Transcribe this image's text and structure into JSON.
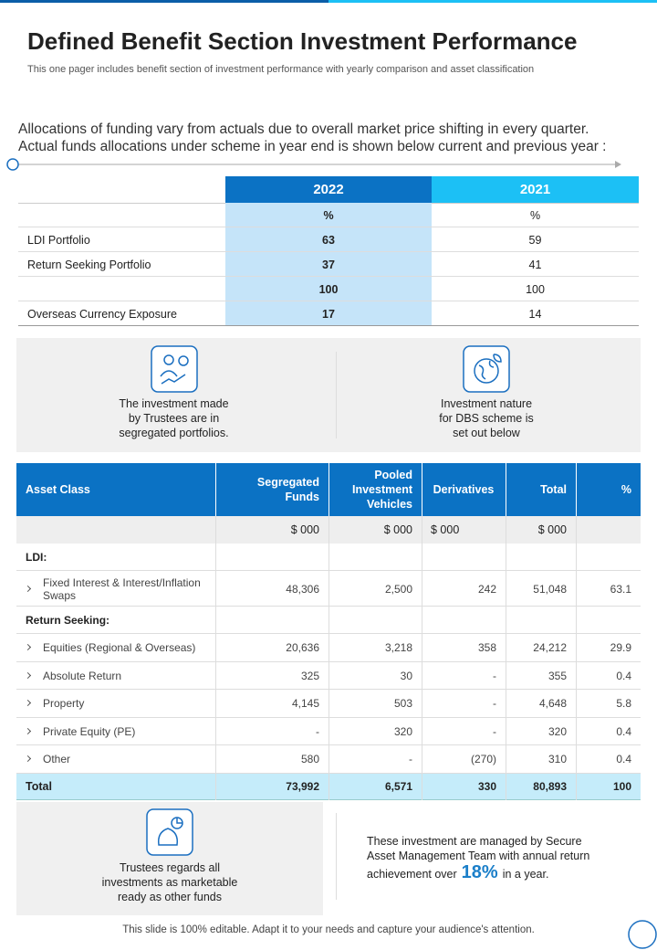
{
  "header": {
    "title": "Defined Benefit Section Investment Performance",
    "subtitle": "This one pager includes benefit section of investment performance with yearly comparison and asset classification"
  },
  "intro": [
    "Allocations of funding vary from actuals due to overall market price shifting in every quarter.",
    "Actual funds allocations under scheme in year end is shown below current and previous year :"
  ],
  "allocation_table": {
    "columns": [
      "2022",
      "2021"
    ],
    "rows": [
      {
        "values": [
          "%",
          "%"
        ]
      },
      {
        "label": "LDI Portfolio",
        "values": [
          "63",
          "59"
        ]
      },
      {
        "label": "Return Seeking Portfolio",
        "values": [
          "37",
          "41"
        ]
      },
      {
        "values": [
          "100",
          "100"
        ]
      },
      {
        "label": "Overseas  Currency Exposure",
        "values": [
          "17",
          "14"
        ]
      }
    ]
  },
  "info_panel": {
    "left": [
      "The investment made",
      "by Trustees are in",
      "segregated portfolios."
    ],
    "right": [
      "Investment nature",
      "for DBS scheme is",
      "set out below"
    ]
  },
  "asset_table": {
    "headers": [
      "Asset  Class",
      "Segregated Funds",
      "Pooled Investment Vehicles",
      "Derivatives",
      "Total",
      "%"
    ],
    "units": [
      "$ 000",
      "$ 000",
      "$ 000",
      "$ 000"
    ],
    "sections": [
      {
        "title": "LDI:",
        "rows": [
          {
            "label": "Fixed Interest & Interest/Inflation Swaps",
            "values": [
              "48,306",
              "2,500",
              "242",
              "51,048",
              "63.1"
            ]
          }
        ]
      },
      {
        "title": "Return Seeking:",
        "rows": [
          {
            "label": "Equities (Regional & Overseas)",
            "values": [
              "20,636",
              "3,218",
              "358",
              "24,212",
              "29.9"
            ]
          },
          {
            "label": "Absolute Return",
            "values": [
              "325",
              "30",
              "-",
              "355",
              "0.4"
            ]
          },
          {
            "label": "Property",
            "values": [
              "4,145",
              "503",
              "-",
              "4,648",
              "5.8"
            ]
          },
          {
            "label": "Private Equity (PE)",
            "values": [
              "-",
              "320",
              "-",
              "320",
              "0.4"
            ]
          },
          {
            "label": "Other",
            "values": [
              "580",
              "-",
              "(270)",
              "310",
              "0.4"
            ]
          }
        ]
      }
    ],
    "total": {
      "label": "Total",
      "values": [
        "73,992",
        "6,571",
        "330",
        "80,893",
        "100"
      ]
    }
  },
  "bottom": {
    "left": [
      "Trustees regards all",
      "investments as marketable",
      "ready as other funds"
    ],
    "right_lines": [
      "These investment are managed by Secure",
      "Asset Management Team with annual return"
    ],
    "right_prefix": "achievement  over",
    "highlight": "18%",
    "right_suffix": "in a year."
  },
  "footer": "This slide is 100% editable. Adapt it to your needs and capture your audience's attention."
}
